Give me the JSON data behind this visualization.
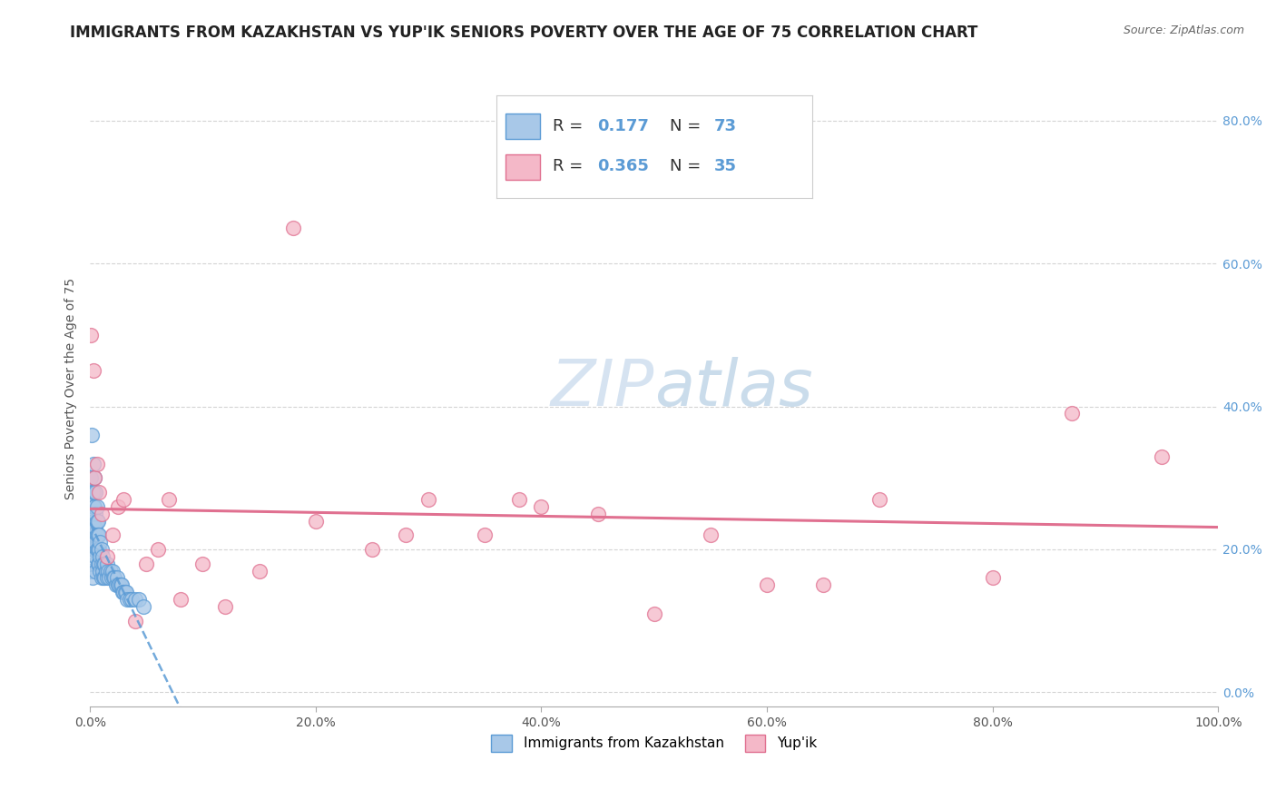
{
  "title": "IMMIGRANTS FROM KAZAKHSTAN VS YUP'IK SENIORS POVERTY OVER THE AGE OF 75 CORRELATION CHART",
  "source": "Source: ZipAtlas.com",
  "xlabel": "",
  "ylabel": "Seniors Poverty Over the Age of 75",
  "xlim": [
    0,
    1.0
  ],
  "ylim": [
    -0.02,
    0.87
  ],
  "xticks": [
    0.0,
    0.2,
    0.4,
    0.6,
    0.8,
    1.0
  ],
  "yticks": [
    0.0,
    0.2,
    0.4,
    0.6,
    0.8
  ],
  "xticklabels": [
    "0.0%",
    "20.0%",
    "40.0%",
    "60.0%",
    "80.0%",
    "100.0%"
  ],
  "yticklabels": [
    "0.0%",
    "20.0%",
    "40.0%",
    "60.0%",
    "80.0%"
  ],
  "blue_color": "#a8c8e8",
  "pink_color": "#f4b8c8",
  "blue_edge": "#5b9bd5",
  "pink_edge": "#e07090",
  "trend_blue_color": "#5b9bd5",
  "trend_pink_color": "#e07090",
  "R_blue": 0.177,
  "N_blue": 73,
  "R_pink": 0.365,
  "N_pink": 35,
  "watermark_zip": "ZIP",
  "watermark_atlas": "atlas",
  "blue_x": [
    0.0005,
    0.001,
    0.001,
    0.0015,
    0.002,
    0.002,
    0.002,
    0.0025,
    0.003,
    0.003,
    0.003,
    0.003,
    0.003,
    0.004,
    0.004,
    0.004,
    0.004,
    0.004,
    0.005,
    0.005,
    0.005,
    0.005,
    0.005,
    0.005,
    0.006,
    0.006,
    0.006,
    0.006,
    0.007,
    0.007,
    0.007,
    0.007,
    0.008,
    0.008,
    0.008,
    0.009,
    0.009,
    0.009,
    0.01,
    0.01,
    0.01,
    0.011,
    0.011,
    0.012,
    0.012,
    0.013,
    0.013,
    0.014,
    0.015,
    0.015,
    0.016,
    0.017,
    0.018,
    0.019,
    0.02,
    0.021,
    0.022,
    0.023,
    0.024,
    0.025,
    0.026,
    0.027,
    0.028,
    0.029,
    0.03,
    0.031,
    0.032,
    0.033,
    0.035,
    0.037,
    0.04,
    0.043,
    0.047
  ],
  "blue_y": [
    0.17,
    0.22,
    0.3,
    0.36,
    0.25,
    0.2,
    0.16,
    0.28,
    0.32,
    0.28,
    0.26,
    0.24,
    0.22,
    0.3,
    0.26,
    0.22,
    0.2,
    0.18,
    0.28,
    0.25,
    0.23,
    0.21,
    0.19,
    0.17,
    0.26,
    0.24,
    0.22,
    0.2,
    0.24,
    0.22,
    0.2,
    0.18,
    0.22,
    0.2,
    0.18,
    0.21,
    0.19,
    0.17,
    0.2,
    0.18,
    0.16,
    0.19,
    0.17,
    0.18,
    0.16,
    0.18,
    0.16,
    0.17,
    0.18,
    0.16,
    0.17,
    0.16,
    0.17,
    0.16,
    0.17,
    0.16,
    0.16,
    0.15,
    0.16,
    0.15,
    0.15,
    0.15,
    0.15,
    0.14,
    0.14,
    0.14,
    0.14,
    0.13,
    0.13,
    0.13,
    0.13,
    0.13,
    0.12
  ],
  "pink_x": [
    0.001,
    0.003,
    0.004,
    0.006,
    0.008,
    0.01,
    0.015,
    0.02,
    0.025,
    0.03,
    0.04,
    0.05,
    0.06,
    0.07,
    0.08,
    0.1,
    0.12,
    0.15,
    0.18,
    0.2,
    0.25,
    0.28,
    0.3,
    0.35,
    0.38,
    0.4,
    0.45,
    0.5,
    0.55,
    0.6,
    0.65,
    0.7,
    0.8,
    0.87,
    0.95
  ],
  "pink_y": [
    0.5,
    0.45,
    0.3,
    0.32,
    0.28,
    0.25,
    0.19,
    0.22,
    0.26,
    0.27,
    0.1,
    0.18,
    0.2,
    0.27,
    0.13,
    0.18,
    0.12,
    0.17,
    0.65,
    0.24,
    0.2,
    0.22,
    0.27,
    0.22,
    0.27,
    0.26,
    0.25,
    0.11,
    0.22,
    0.15,
    0.15,
    0.27,
    0.16,
    0.39,
    0.33
  ],
  "title_fontsize": 12,
  "axis_label_fontsize": 10,
  "tick_fontsize": 10,
  "legend_fontsize": 13,
  "watermark_fontsize": 52,
  "background_color": "#ffffff",
  "grid_color": "#d0d0d0",
  "ytick_color": "#5b9bd5",
  "xtick_color": "#555555",
  "ylabel_color": "#555555"
}
